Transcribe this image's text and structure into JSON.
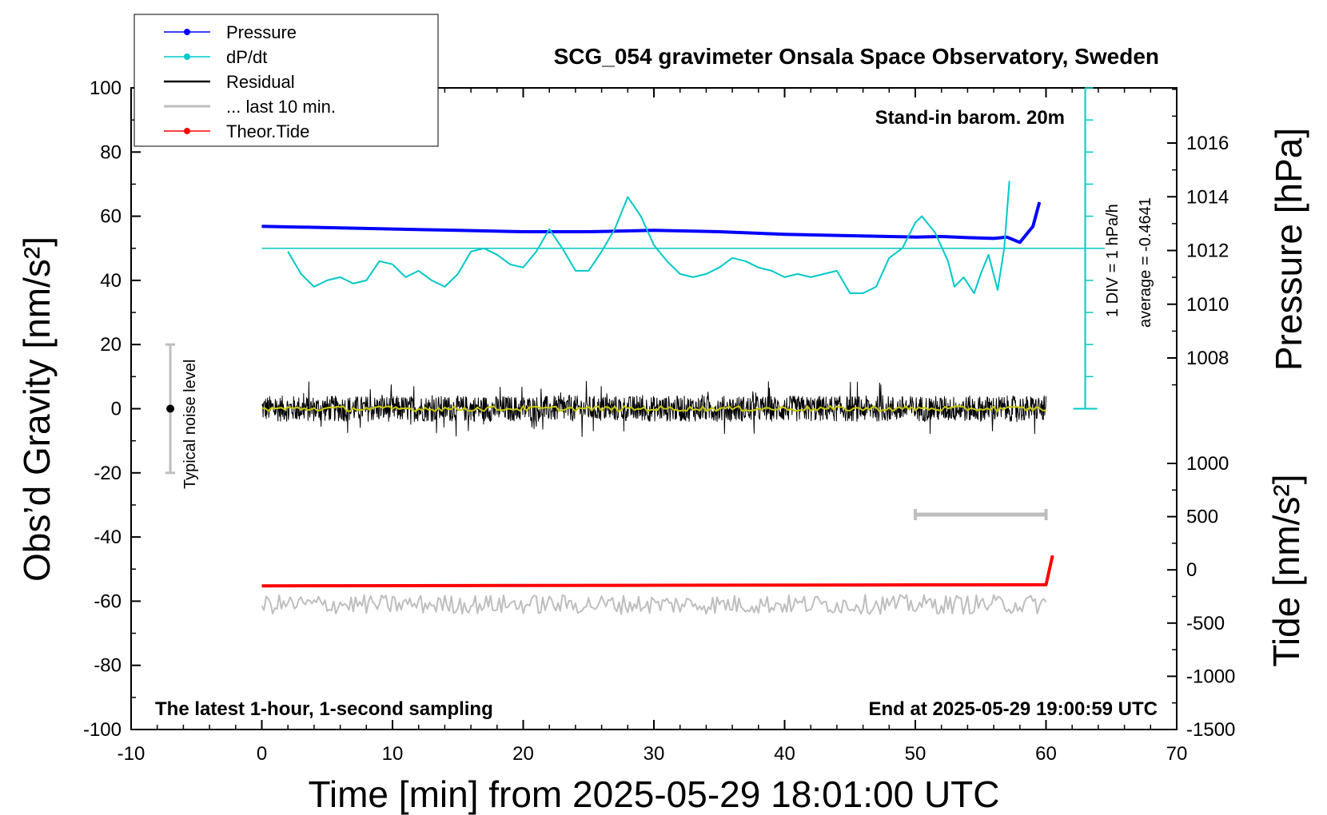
{
  "chart_data": {
    "type": "line",
    "title": "SCG_054 gravimeter Onsala Space Observatory, Sweden",
    "xlabel": "Time [min] from 2025-05-29 18:01:00 UTC",
    "ylabel_left": "Obs’d Gravity [nm/s²]",
    "ylabel_right_top": "Pressure [hPa]",
    "ylabel_right_bottom": "Tide [nm/s²]",
    "xlim": [
      -10,
      70
    ],
    "ylim": [
      -100,
      100
    ],
    "pressure_ylim": [
      1006,
      1018
    ],
    "tide_ylim": [
      -1500,
      1000
    ],
    "x_ticks": [
      "-10",
      "0",
      "10",
      "20",
      "30",
      "40",
      "50",
      "60",
      "70"
    ],
    "y_ticks": [
      "-100",
      "-80",
      "-60",
      "-40",
      "-20",
      "0",
      "20",
      "40",
      "60",
      "80",
      "100"
    ],
    "pressure_ticks": [
      "1008",
      "1010",
      "1012",
      "1014",
      "1016"
    ],
    "tide_ticks": [
      "-1500",
      "-1000",
      "-500",
      "0",
      "500",
      "1000"
    ],
    "annotations": {
      "stand_in": "Stand-in barom. 20m",
      "latest": "The latest 1-hour, 1-second sampling",
      "end_at": "End at 2025-05-29 19:00:59 UTC",
      "div": "1 DIV = 1 hPa/h",
      "average": "average = -0.4641",
      "noise": "Typical noise level"
    },
    "legend": {
      "placement": "top-left",
      "entries": [
        {
          "label": "Pressure",
          "color": "#0000ff",
          "marker": true
        },
        {
          "label": "dP/dt",
          "color": "#00c8c8",
          "marker": true
        },
        {
          "label": "Residual",
          "color": "#000000",
          "marker": false
        },
        {
          "label": "... last 10 min.",
          "color": "#bebebe",
          "marker": false
        },
        {
          "label": "Theor.Tide",
          "color": "#ff0000",
          "marker": true
        }
      ]
    },
    "series": [
      {
        "name": "Pressure",
        "axis": "pressure",
        "color": "#0000ff",
        "points": [
          [
            0,
            1012.9
          ],
          [
            5,
            1012.85
          ],
          [
            10,
            1012.8
          ],
          [
            15,
            1012.75
          ],
          [
            20,
            1012.7
          ],
          [
            25,
            1012.7
          ],
          [
            30,
            1012.75
          ],
          [
            35,
            1012.7
          ],
          [
            40,
            1012.6
          ],
          [
            45,
            1012.55
          ],
          [
            50,
            1012.5
          ],
          [
            52,
            1012.52
          ],
          [
            54,
            1012.48
          ],
          [
            56,
            1012.45
          ],
          [
            57,
            1012.5
          ],
          [
            58,
            1012.3
          ],
          [
            59,
            1012.9
          ],
          [
            59.5,
            1013.8
          ]
        ]
      },
      {
        "name": "dP/dt",
        "axis": "gravity",
        "color": "#00c8c8",
        "points": [
          [
            2,
            49
          ],
          [
            3,
            42
          ],
          [
            4,
            38
          ],
          [
            5,
            40
          ],
          [
            6,
            41
          ],
          [
            7,
            39
          ],
          [
            8,
            40
          ],
          [
            9,
            46
          ],
          [
            10,
            45
          ],
          [
            11,
            41
          ],
          [
            12,
            43
          ],
          [
            13,
            40
          ],
          [
            14,
            38
          ],
          [
            15,
            42
          ],
          [
            16,
            49
          ],
          [
            17,
            50
          ],
          [
            18,
            48
          ],
          [
            19,
            45
          ],
          [
            20,
            44
          ],
          [
            21,
            49
          ],
          [
            22,
            56
          ],
          [
            23,
            50
          ],
          [
            24,
            43
          ],
          [
            25,
            43
          ],
          [
            26,
            49
          ],
          [
            27,
            56
          ],
          [
            28,
            66
          ],
          [
            29,
            60
          ],
          [
            30,
            51
          ],
          [
            31,
            46
          ],
          [
            32,
            42
          ],
          [
            33,
            41
          ],
          [
            34,
            42
          ],
          [
            35,
            44
          ],
          [
            36,
            47
          ],
          [
            37,
            46
          ],
          [
            38,
            44
          ],
          [
            39,
            43
          ],
          [
            40,
            41
          ],
          [
            41,
            42
          ],
          [
            42,
            41
          ],
          [
            43,
            42
          ],
          [
            44,
            43
          ],
          [
            45,
            36
          ],
          [
            46,
            36
          ],
          [
            47,
            38
          ],
          [
            48,
            47
          ],
          [
            49,
            50
          ],
          [
            50,
            58
          ],
          [
            50.5,
            60
          ],
          [
            51.5,
            55
          ],
          [
            52.5,
            46
          ],
          [
            53,
            38
          ],
          [
            53.7,
            41
          ],
          [
            54.5,
            36
          ],
          [
            55,
            42
          ],
          [
            55.6,
            48
          ],
          [
            56.3,
            37
          ],
          [
            56.8,
            50
          ],
          [
            57.2,
            71
          ]
        ]
      },
      {
        "name": "Residual",
        "axis": "gravity",
        "color": "#000000",
        "noise": true,
        "center": 0,
        "amplitude": 4,
        "x_range": [
          0,
          60
        ]
      },
      {
        "name": "... last 10 min.",
        "axis": "gravity",
        "color": "#bebebe",
        "noise": true,
        "center": -61,
        "amplitude": 3,
        "x_range": [
          0,
          60
        ]
      },
      {
        "name": "Theor.Tide",
        "axis": "tide",
        "color": "#ff0000",
        "points": [
          [
            0,
            -150
          ],
          [
            60,
            -140
          ],
          [
            60.5,
            135
          ]
        ]
      }
    ],
    "dpdt_zero_line": 50,
    "average_residual_color": "#c8c800",
    "last10_bar": {
      "x": [
        50,
        60
      ],
      "y": -33
    },
    "noise_bar": {
      "x": -7,
      "y": [
        -20,
        20
      ],
      "center": 0
    },
    "pressure_div_axis": {
      "x": 63,
      "y_bottom": 0,
      "y_top": 100
    }
  }
}
